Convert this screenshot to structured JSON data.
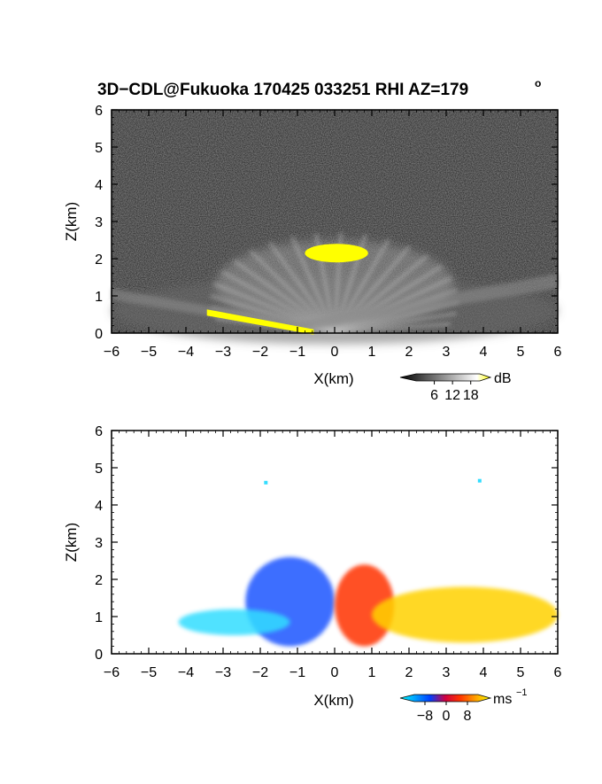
{
  "figure": {
    "title": "3D−CDL@Fukuoka 170425 033251 RHI AZ=179",
    "title_degree": "o"
  },
  "chart_data": [
    {
      "type": "heatmap",
      "panel": "reflectivity",
      "xlabel": "X(km)",
      "ylabel": "Z(km)",
      "xlim": [
        -6,
        6
      ],
      "ylim": [
        0,
        6
      ],
      "x_ticks": [
        "−6",
        "−5",
        "−4",
        "−3",
        "−2",
        "−1",
        "0",
        "1",
        "2",
        "3",
        "4",
        "5",
        "6"
      ],
      "y_ticks": [
        "0",
        "1",
        "2",
        "3",
        "4",
        "5",
        "6"
      ],
      "background": "#1c1c1c",
      "colorbar": {
        "unit": "dB",
        "tick_labels": [
          "6",
          "12",
          "18"
        ],
        "tick_values": [
          6,
          12,
          18
        ],
        "range": [
          0,
          21
        ],
        "colors": [
          "#000000",
          "#ffffff",
          "#ffff00"
        ]
      },
      "features": [
        {
          "label": "bright cloud echo",
          "x_range": [
            -0.8,
            0.9
          ],
          "z_range": [
            1.9,
            2.4
          ],
          "level_db": 20,
          "color": "#ffff00"
        },
        {
          "label": "bright ground echo",
          "x_range": [
            -3.4,
            -0.6
          ],
          "z_range": [
            0.0,
            0.5
          ],
          "level_db": 20,
          "color": "#ffff00"
        },
        {
          "label": "diffuse echo fan",
          "x_range": [
            -6,
            6
          ],
          "z_range": [
            0.0,
            2.6
          ],
          "level_db": 10,
          "color": "#9a9a9a"
        }
      ]
    },
    {
      "type": "heatmap",
      "panel": "doppler_velocity",
      "xlabel": "X(km)",
      "ylabel": "Z(km)",
      "xlim": [
        -6,
        6
      ],
      "ylim": [
        0,
        6
      ],
      "x_ticks": [
        "−6",
        "−5",
        "−4",
        "−3",
        "−2",
        "−1",
        "0",
        "1",
        "2",
        "3",
        "4",
        "5",
        "6"
      ],
      "y_ticks": [
        "0",
        "1",
        "2",
        "3",
        "4",
        "5",
        "6"
      ],
      "background": "#ffffff",
      "colorbar": {
        "unit": "ms",
        "unit_exponent": "−1",
        "tick_labels": [
          "−8",
          "0",
          "8"
        ],
        "tick_values": [
          -8,
          0,
          8
        ],
        "range": [
          -12,
          12
        ],
        "colors": [
          "#00ffff",
          "#0000ff",
          "#ff0000",
          "#ffff00"
        ]
      },
      "features": [
        {
          "label": "negative velocity region",
          "x_range": [
            -2.4,
            0.0
          ],
          "z_range": [
            0.2,
            2.6
          ],
          "velocity": -8,
          "color": "#1a55ff"
        },
        {
          "label": "weak negative low layer",
          "x_range": [
            -4.2,
            -1.2
          ],
          "z_range": [
            0.5,
            1.2
          ],
          "velocity": -11,
          "color": "#33ddff"
        },
        {
          "label": "positive velocity region",
          "x_range": [
            0.0,
            1.6
          ],
          "z_range": [
            0.2,
            2.4
          ],
          "velocity": 2,
          "color": "#ff3300"
        },
        {
          "label": "strong positive low layer",
          "x_range": [
            1.0,
            6.0
          ],
          "z_range": [
            0.3,
            1.8
          ],
          "velocity": 8,
          "color": "#ffd200"
        },
        {
          "label": "isolated point",
          "x": -1.85,
          "z": 4.6,
          "velocity": -11,
          "color": "#33ddff"
        },
        {
          "label": "isolated point",
          "x": 3.9,
          "z": 4.65,
          "velocity": -11,
          "color": "#33ddff"
        }
      ]
    }
  ]
}
